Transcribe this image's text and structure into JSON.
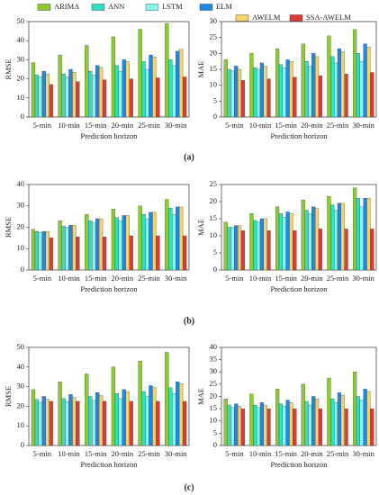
{
  "chart_data": [
    {
      "type": "bar",
      "ylabel": "RMSE",
      "xlabel": "Prediction horizon",
      "caption": "(a)",
      "categories": [
        "5-min",
        "10-min",
        "15-min",
        "20-min",
        "25-min",
        "30-min"
      ],
      "ylim": [
        0,
        50
      ],
      "yticks": [
        0,
        10,
        20,
        30,
        40,
        50
      ],
      "series": [
        {
          "name": "ARIMA",
          "color": "#8ccc2e",
          "values": [
            28.5,
            32.5,
            37.5,
            42,
            46,
            49
          ]
        },
        {
          "name": "ANN",
          "color": "#2ee0c4",
          "values": [
            22,
            22.5,
            24,
            27,
            29,
            30
          ]
        },
        {
          "name": "LSTM",
          "color": "#8af2f0",
          "values": [
            21,
            21,
            22,
            24,
            25,
            27
          ]
        },
        {
          "name": "ELM",
          "color": "#2088e0",
          "values": [
            24,
            25,
            27,
            30,
            32.5,
            34.5
          ]
        },
        {
          "name": "AWELM",
          "color": "#f6d26a",
          "values": [
            22.5,
            23.5,
            26,
            29,
            31.5,
            35.5
          ]
        },
        {
          "name": "SSA-AWELM",
          "color": "#e03a36",
          "values": [
            17,
            18.5,
            19.5,
            20,
            20.5,
            21
          ]
        }
      ]
    },
    {
      "type": "bar",
      "ylabel": "MAE",
      "xlabel": "Prediction horizon",
      "categories": [
        "5-min",
        "10-min",
        "15-min",
        "20-min",
        "25-min",
        "30-min"
      ],
      "ylim": [
        0,
        30
      ],
      "yticks": [
        0,
        5,
        10,
        15,
        20,
        25,
        30
      ],
      "series": [
        {
          "name": "ARIMA",
          "color": "#8ccc2e",
          "values": [
            18,
            20,
            21.5,
            23,
            25.5,
            27.5
          ]
        },
        {
          "name": "ANN",
          "color": "#2ee0c4",
          "values": [
            15,
            15.5,
            16.5,
            17.5,
            19,
            20
          ]
        },
        {
          "name": "LSTM",
          "color": "#8af2f0",
          "values": [
            14.5,
            15,
            15.5,
            16,
            17,
            17.5
          ]
        },
        {
          "name": "ELM",
          "color": "#2088e0",
          "values": [
            16,
            17,
            18,
            20,
            21.5,
            23
          ]
        },
        {
          "name": "AWELM",
          "color": "#f6d26a",
          "values": [
            15,
            16,
            17.5,
            19,
            20.5,
            22
          ]
        },
        {
          "name": "SSA-AWELM",
          "color": "#e03a36",
          "values": [
            11.5,
            12,
            12.5,
            13,
            13.5,
            14
          ]
        }
      ]
    },
    {
      "type": "bar",
      "ylabel": "RMSE",
      "xlabel": "Prediction horizon",
      "caption": "(b)",
      "categories": [
        "5-min",
        "10-min",
        "15-min",
        "20-min",
        "25-min",
        "30-min"
      ],
      "ylim": [
        0,
        40
      ],
      "yticks": [
        0,
        10,
        20,
        30,
        40
      ],
      "series": [
        {
          "name": "ARIMA",
          "color": "#8ccc2e",
          "values": [
            19,
            23,
            26,
            28.5,
            30,
            33
          ]
        },
        {
          "name": "ANN",
          "color": "#2ee0c4",
          "values": [
            18,
            20.5,
            23,
            24.5,
            26,
            29
          ]
        },
        {
          "name": "LSTM",
          "color": "#8af2f0",
          "values": [
            17.5,
            20,
            22,
            23,
            24,
            26
          ]
        },
        {
          "name": "ELM",
          "color": "#2088e0",
          "values": [
            18,
            21,
            24,
            25.5,
            27,
            29.5
          ]
        },
        {
          "name": "AWELM",
          "color": "#f6d26a",
          "values": [
            18,
            21,
            24,
            25.5,
            27,
            29.5
          ]
        },
        {
          "name": "SSA-AWELM",
          "color": "#e03a36",
          "values": [
            15,
            15.5,
            15.5,
            16,
            16,
            16
          ]
        }
      ]
    },
    {
      "type": "bar",
      "ylabel": "MAE",
      "xlabel": "Prediction horizon",
      "categories": [
        "5-min",
        "10-min",
        "15-min",
        "20-min",
        "25-min",
        "30-min"
      ],
      "ylim": [
        0,
        25
      ],
      "yticks": [
        0,
        5,
        10,
        15,
        20,
        25
      ],
      "series": [
        {
          "name": "ARIMA",
          "color": "#8ccc2e",
          "values": [
            14,
            16.5,
            18.5,
            20.5,
            21.5,
            24
          ]
        },
        {
          "name": "ANN",
          "color": "#2ee0c4",
          "values": [
            12.5,
            14.5,
            16.5,
            17.5,
            19,
            21
          ]
        },
        {
          "name": "LSTM",
          "color": "#8af2f0",
          "values": [
            12.5,
            14,
            15.5,
            16.5,
            17.5,
            18.5
          ]
        },
        {
          "name": "ELM",
          "color": "#2088e0",
          "values": [
            13,
            15,
            17,
            18.5,
            19.5,
            21
          ]
        },
        {
          "name": "AWELM",
          "color": "#f6d26a",
          "values": [
            13,
            15,
            16.5,
            18,
            19.5,
            21
          ]
        },
        {
          "name": "SSA-AWELM",
          "color": "#e03a36",
          "values": [
            11.5,
            11.5,
            11.5,
            12,
            12,
            12
          ]
        }
      ]
    },
    {
      "type": "bar",
      "ylabel": "RMSE",
      "xlabel": "Prediction horizon",
      "caption": "(c)",
      "categories": [
        "5-min",
        "10-min",
        "15-min",
        "20-min",
        "25-min",
        "30-min"
      ],
      "ylim": [
        0,
        50
      ],
      "yticks": [
        0,
        10,
        20,
        30,
        40,
        50
      ],
      "series": [
        {
          "name": "ARIMA",
          "color": "#8ccc2e",
          "values": [
            28.5,
            32.5,
            36.5,
            40,
            43,
            47.5
          ]
        },
        {
          "name": "ANN",
          "color": "#2ee0c4",
          "values": [
            23.5,
            24,
            25,
            26.5,
            27.5,
            29.5
          ]
        },
        {
          "name": "LSTM",
          "color": "#8af2f0",
          "values": [
            22,
            22.5,
            23,
            24,
            25,
            26.5
          ]
        },
        {
          "name": "ELM",
          "color": "#2088e0",
          "values": [
            25,
            26,
            27,
            28.5,
            30.5,
            32.5
          ]
        },
        {
          "name": "AWELM",
          "color": "#f6d26a",
          "values": [
            23.5,
            24.5,
            25.5,
            27.5,
            29.5,
            31.5
          ]
        },
        {
          "name": "SSA-AWELM",
          "color": "#e03a36",
          "values": [
            22.5,
            22.5,
            22.5,
            22.5,
            22.5,
            22.5
          ]
        }
      ]
    },
    {
      "type": "bar",
      "ylabel": "MAE",
      "xlabel": "Prediction horizon",
      "categories": [
        "5-min",
        "10-min",
        "15-min",
        "20-min",
        "25-min",
        "30-min"
      ],
      "ylim": [
        0,
        40
      ],
      "yticks": [
        0,
        5,
        10,
        15,
        20,
        25,
        30,
        35,
        40
      ],
      "series": [
        {
          "name": "ARIMA",
          "color": "#8ccc2e",
          "values": [
            19,
            21,
            23,
            25,
            27.5,
            30
          ]
        },
        {
          "name": "ANN",
          "color": "#2ee0c4",
          "values": [
            16.5,
            16.5,
            17,
            18,
            19,
            20
          ]
        },
        {
          "name": "LSTM",
          "color": "#8af2f0",
          "values": [
            15.5,
            15.5,
            16,
            16.5,
            17.5,
            18.5
          ]
        },
        {
          "name": "ELM",
          "color": "#2088e0",
          "values": [
            17,
            17.5,
            18.5,
            20,
            21.5,
            23
          ]
        },
        {
          "name": "AWELM",
          "color": "#f6d26a",
          "values": [
            16,
            16.5,
            17.5,
            19,
            20.5,
            22
          ]
        },
        {
          "name": "SSA-AWELM",
          "color": "#e03a36",
          "values": [
            15,
            15,
            15,
            15,
            15,
            15
          ]
        }
      ]
    }
  ]
}
